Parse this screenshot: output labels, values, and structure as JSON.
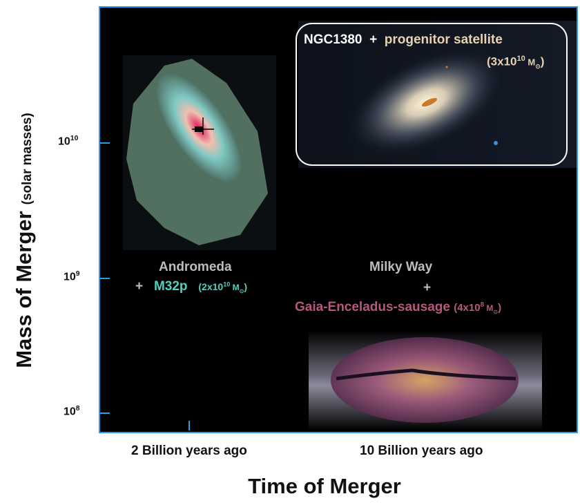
{
  "axes": {
    "y_title": "Mass of Merger",
    "y_unit": "(solar masses)",
    "x_title": "Time of Merger",
    "y_ticks": [
      {
        "base": "10",
        "exp": "10"
      },
      {
        "base": "10",
        "exp": "9"
      },
      {
        "base": "10",
        "exp": "8"
      }
    ],
    "x_ticks": [
      "2 Billion years ago",
      "10 Billion years ago"
    ],
    "y_scale": "log"
  },
  "mergers": [
    {
      "host": "NGC1380",
      "plus": "+",
      "satellite": "progenitor satellite",
      "mass_text": "(3x10",
      "mass_exp": "10",
      "mass_unit": " M",
      "sun": "⊙",
      "close": ")",
      "color_host": "#ffffff",
      "color_sat": "#e8d2b0"
    },
    {
      "host": "Andromeda",
      "plus": "+",
      "satellite": "M32p",
      "mass_text": "(2x10",
      "mass_exp": "10",
      "mass_unit": " M",
      "sun": "⊙",
      "close": ")",
      "color_host": "#bdbdbd",
      "color_sat": "#4fd1c0"
    },
    {
      "host": "Milky Way",
      "plus": "+",
      "satellite": "Gaia-Enceladus-sausage",
      "mass_text": "(4x10",
      "mass_exp": "8",
      "mass_unit": " M",
      "sun": "⊙",
      "close": ")",
      "color_host": "#bdbdbd",
      "color_sat": "#b5587f"
    }
  ],
  "colors": {
    "frame": "#2b9de8",
    "background": "#000000"
  }
}
